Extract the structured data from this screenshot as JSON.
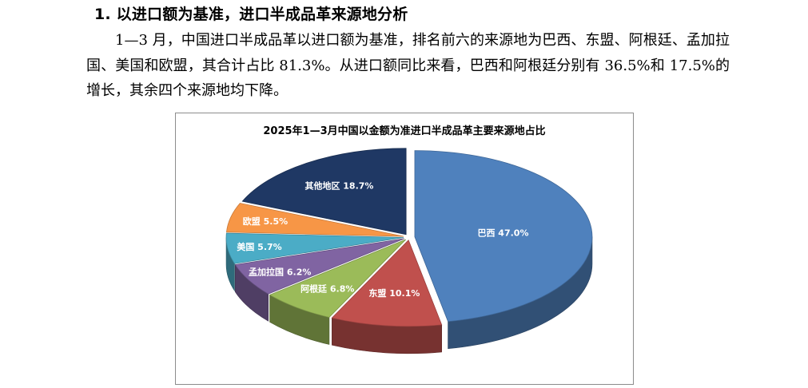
{
  "heading": "1. 以进口额为基准，进口半成品革来源地分析",
  "paragraph": "1—3 月，中国进口半成品革以进口额为基准，排名前六的来源地为巴西、东盟、阿根廷、孟加拉国、美国和欧盟，其合计占比 81.3%。从进口额同比来看，巴西和阿根廷分别有 36.5%和 17.5%的增长，其余四个来源地均下降。",
  "chart_data": {
    "type": "pie",
    "title": "2025年1—3月中国以金额为准进口半成品革主要来源地占比",
    "categories": [
      "巴西",
      "东盟",
      "阿根廷",
      "孟加拉国",
      "美国",
      "欧盟",
      "其他地区"
    ],
    "values": [
      47.0,
      10.1,
      6.8,
      6.2,
      5.7,
      5.5,
      18.7
    ],
    "labels": [
      "巴西 47.0%",
      "东盟 10.1%",
      "阿根廷 6.8%",
      "孟加拉国 6.2%",
      "美国 5.7%",
      "欧盟 5.5%",
      "其他地区 18.7%"
    ],
    "colors": [
      "#4f81bd",
      "#c0504d",
      "#9bbb59",
      "#8064a2",
      "#4bacc6",
      "#f79646",
      "#1f3864"
    ],
    "style": "3d-exploded"
  }
}
